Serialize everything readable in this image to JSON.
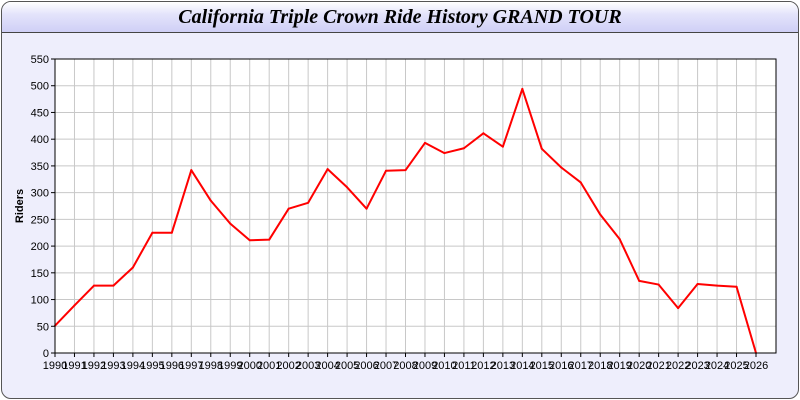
{
  "chart_data": {
    "type": "line",
    "title": "California Triple Crown Ride History GRAND TOUR",
    "xlabel": "",
    "ylabel": "Riders",
    "ylim": [
      0,
      550
    ],
    "yticks": [
      0,
      50,
      100,
      150,
      200,
      250,
      300,
      350,
      400,
      450,
      500,
      550
    ],
    "grid": true,
    "x": [
      1990,
      1991,
      1992,
      1993,
      1994,
      1995,
      1996,
      1997,
      1998,
      1999,
      2000,
      2001,
      2002,
      2003,
      2004,
      2005,
      2006,
      2007,
      2008,
      2009,
      2010,
      2011,
      2012,
      2013,
      2014,
      2015,
      2016,
      2017,
      2018,
      2019,
      2020,
      2021,
      2022,
      2023,
      2024,
      2025,
      2026
    ],
    "series": [
      {
        "color": "#ff0000",
        "values": [
          51,
          89,
          126,
          126,
          160,
          225,
          225,
          342,
          285,
          242,
          211,
          212,
          270,
          281,
          344,
          310,
          270,
          341,
          342,
          393,
          374,
          383,
          411,
          386,
          494,
          382,
          347,
          319,
          259,
          213,
          135,
          128,
          84,
          129,
          126,
          124,
          0
        ]
      }
    ]
  }
}
